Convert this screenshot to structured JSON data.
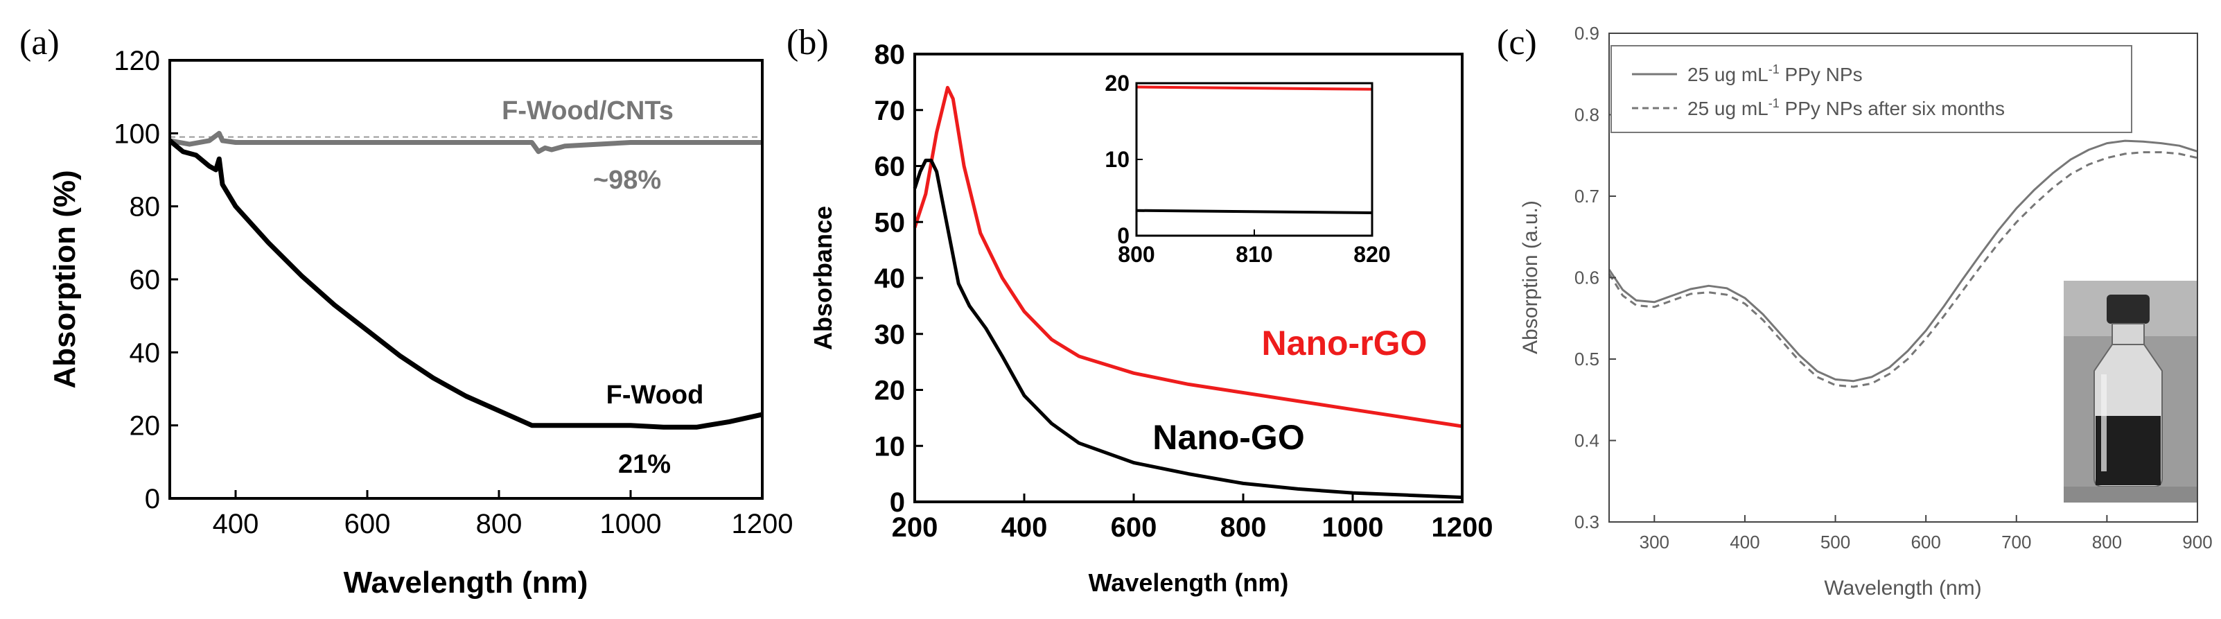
{
  "colors": {
    "black": "#000000",
    "red": "#ee1c1c",
    "gray": "#777777",
    "dark_gray": "#555555",
    "inset_photo_bg": "#9a9a9a"
  },
  "chart_data": [
    {
      "panel": "(a)",
      "type": "line",
      "xlabel": "Wavelength (nm)",
      "ylabel": "Absorption (%)",
      "xlim": [
        300,
        1200
      ],
      "ylim": [
        0,
        120
      ],
      "xticks": [
        400,
        600,
        800,
        1000,
        1200
      ],
      "yticks": [
        0,
        20,
        40,
        60,
        80,
        100,
        120
      ],
      "annotations": [
        "F-Wood/CNTs",
        "~98%",
        "F-Wood",
        "21%"
      ],
      "series": [
        {
          "name": "F-Wood/CNTs",
          "color": "gray",
          "x": [
            300,
            330,
            360,
            375,
            380,
            400,
            500,
            600,
            700,
            800,
            850,
            860,
            870,
            880,
            900,
            950,
            1000,
            1100,
            1200
          ],
          "y": [
            98,
            97,
            98,
            100,
            98,
            97.5,
            97.5,
            97.5,
            97.5,
            97.5,
            97.5,
            95,
            96,
            95.5,
            96.5,
            97,
            97.5,
            97.5,
            97.5
          ]
        },
        {
          "name": "F-Wood",
          "color": "black",
          "x": [
            300,
            320,
            340,
            360,
            370,
            375,
            380,
            400,
            450,
            500,
            550,
            600,
            650,
            700,
            750,
            800,
            850,
            900,
            950,
            1000,
            1050,
            1100,
            1150,
            1200
          ],
          "y": [
            98,
            95,
            94,
            91,
            90,
            93,
            86,
            80,
            70,
            61,
            53,
            46,
            39,
            33,
            28,
            24,
            20,
            20,
            20,
            20,
            19.5,
            19.5,
            21,
            23
          ]
        }
      ]
    },
    {
      "panel": "(b)",
      "type": "line",
      "xlabel": "Wavelength (nm)",
      "ylabel": "Absorbance",
      "xlim": [
        200,
        1200
      ],
      "ylim": [
        0,
        80
      ],
      "xticks": [
        200,
        400,
        600,
        800,
        1000,
        1200
      ],
      "yticks": [
        0,
        10,
        20,
        30,
        40,
        50,
        60,
        70,
        80
      ],
      "annotations": [
        "Nano-rGO",
        "Nano-GO"
      ],
      "series": [
        {
          "name": "Nano-rGO",
          "color": "red",
          "x": [
            200,
            220,
            240,
            260,
            270,
            290,
            320,
            360,
            400,
            450,
            500,
            600,
            700,
            800,
            900,
            1000,
            1100,
            1200
          ],
          "y": [
            49,
            55,
            66,
            74,
            72,
            60,
            48,
            40,
            34,
            29,
            26,
            23,
            21,
            19.5,
            18,
            16.5,
            15,
            13.5
          ]
        },
        {
          "name": "Nano-GO",
          "color": "black",
          "x": [
            200,
            210,
            220,
            230,
            240,
            260,
            280,
            300,
            330,
            360,
            400,
            450,
            500,
            600,
            700,
            800,
            900,
            1000,
            1100,
            1200
          ],
          "y": [
            56,
            59,
            61,
            61,
            59,
            49,
            39,
            35,
            31,
            26,
            19,
            14,
            10.5,
            7,
            5,
            3.3,
            2.3,
            1.6,
            1.2,
            0.8
          ]
        }
      ],
      "inset": {
        "xlim": [
          800,
          820
        ],
        "ylim": [
          0,
          20
        ],
        "xticks": [
          800,
          810,
          820
        ],
        "yticks": [
          0,
          10,
          20
        ],
        "series": [
          {
            "name": "Nano-rGO",
            "color": "red",
            "x": [
              800,
              820
            ],
            "y": [
              19.5,
              19.2
            ]
          },
          {
            "name": "Nano-GO",
            "color": "black",
            "x": [
              800,
              820
            ],
            "y": [
              3.3,
              3.0
            ]
          }
        ]
      }
    },
    {
      "panel": "(c)",
      "type": "line",
      "xlabel": "Wavelength (nm)",
      "ylabel": "Absorption (a.u.)",
      "xlim": [
        250,
        900
      ],
      "ylim": [
        0.3,
        0.9
      ],
      "xticks": [
        300,
        400,
        500,
        600,
        700,
        800,
        900
      ],
      "yticks": [
        0.3,
        0.4,
        0.5,
        0.6,
        0.7,
        0.8,
        0.9
      ],
      "legend": {
        "position": "top",
        "entries": [
          {
            "prefix": "25 ug mL",
            "sup": "-1",
            "suffix": " PPy NPs",
            "style": "solid"
          },
          {
            "prefix": "25 ug mL",
            "sup": "-1",
            "suffix": " PPy NPs after six months",
            "style": "dashed"
          }
        ]
      },
      "series": [
        {
          "name": "25 ug mL-1 PPy NPs",
          "style": "solid",
          "color": "gray",
          "x": [
            250,
            265,
            280,
            300,
            320,
            340,
            360,
            380,
            400,
            420,
            440,
            460,
            480,
            500,
            520,
            540,
            560,
            580,
            600,
            620,
            640,
            660,
            680,
            700,
            720,
            740,
            760,
            780,
            800,
            820,
            840,
            860,
            880,
            900
          ],
          "y": [
            0.61,
            0.585,
            0.572,
            0.57,
            0.578,
            0.586,
            0.59,
            0.587,
            0.575,
            0.555,
            0.53,
            0.505,
            0.485,
            0.475,
            0.473,
            0.478,
            0.49,
            0.51,
            0.535,
            0.565,
            0.597,
            0.628,
            0.658,
            0.685,
            0.708,
            0.728,
            0.745,
            0.757,
            0.765,
            0.768,
            0.767,
            0.765,
            0.762,
            0.755
          ]
        },
        {
          "name": "25 ug mL-1 PPy NPs after six months",
          "style": "dashed",
          "color": "gray",
          "x": [
            250,
            265,
            280,
            300,
            320,
            340,
            360,
            380,
            400,
            420,
            440,
            460,
            480,
            500,
            520,
            540,
            560,
            580,
            600,
            620,
            640,
            660,
            680,
            700,
            720,
            740,
            760,
            780,
            800,
            820,
            840,
            860,
            880,
            900
          ],
          "y": [
            0.605,
            0.578,
            0.566,
            0.564,
            0.572,
            0.58,
            0.582,
            0.579,
            0.568,
            0.548,
            0.523,
            0.498,
            0.478,
            0.468,
            0.466,
            0.47,
            0.482,
            0.5,
            0.525,
            0.553,
            0.583,
            0.613,
            0.642,
            0.668,
            0.69,
            0.71,
            0.727,
            0.739,
            0.747,
            0.752,
            0.754,
            0.754,
            0.752,
            0.747
          ]
        }
      ]
    }
  ]
}
